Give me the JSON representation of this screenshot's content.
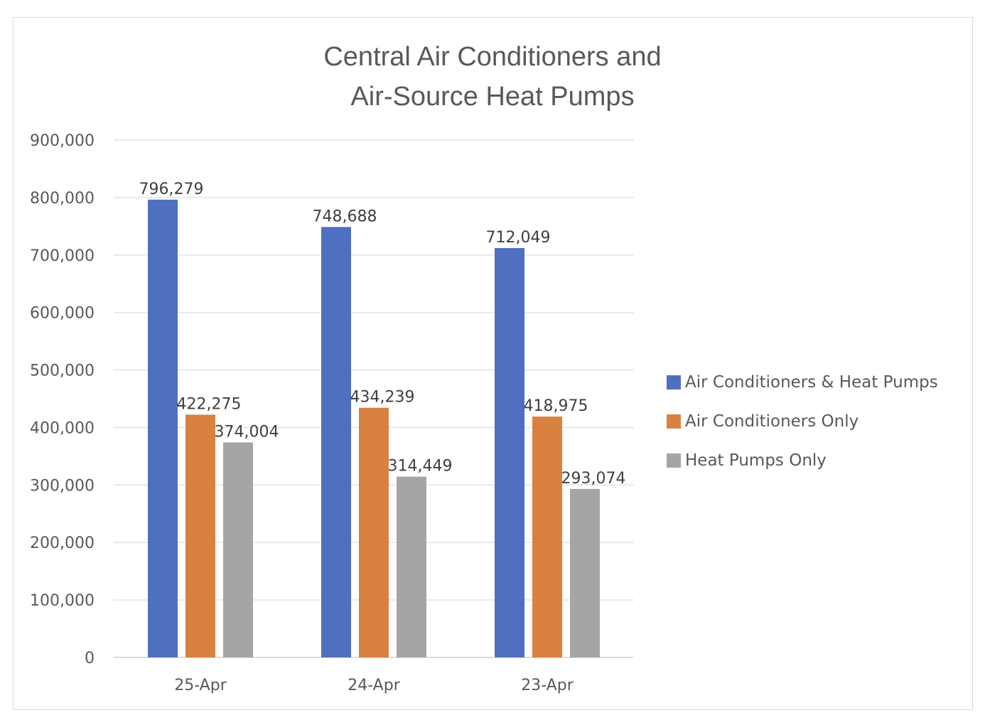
{
  "chart_data": {
    "type": "bar",
    "title": "Central Air Conditioners and Air-Source Heat Pumps",
    "title_lines": [
      "Central Air Conditioners and",
      "Air-Source Heat Pumps"
    ],
    "categories": [
      "25-Apr",
      "24-Apr",
      "23-Apr"
    ],
    "series": [
      {
        "name": "Air Conditioners & Heat Pumps",
        "color": "#4F6FC0",
        "values": [
          796279,
          748688,
          712049
        ],
        "labels": [
          "796,279",
          "748,688",
          "712,049"
        ]
      },
      {
        "name": "Air Conditioners Only",
        "color": "#D98140",
        "values": [
          422275,
          434239,
          418975
        ],
        "labels": [
          "422,275",
          "434,239",
          "418,975"
        ]
      },
      {
        "name": "Heat Pumps Only",
        "color": "#A5A5A5",
        "values": [
          374004,
          314449,
          293074
        ],
        "labels": [
          "374,004",
          "314,449",
          "293,074"
        ]
      }
    ],
    "yticks": [
      "0",
      "100,000",
      "200,000",
      "300,000",
      "400,000",
      "500,000",
      "600,000",
      "700,000",
      "800,000",
      "900,000"
    ],
    "ylim": [
      0,
      900000
    ],
    "ytick_step": 100000,
    "grid": true,
    "legend_position": "right",
    "xlabel": "",
    "ylabel": ""
  }
}
